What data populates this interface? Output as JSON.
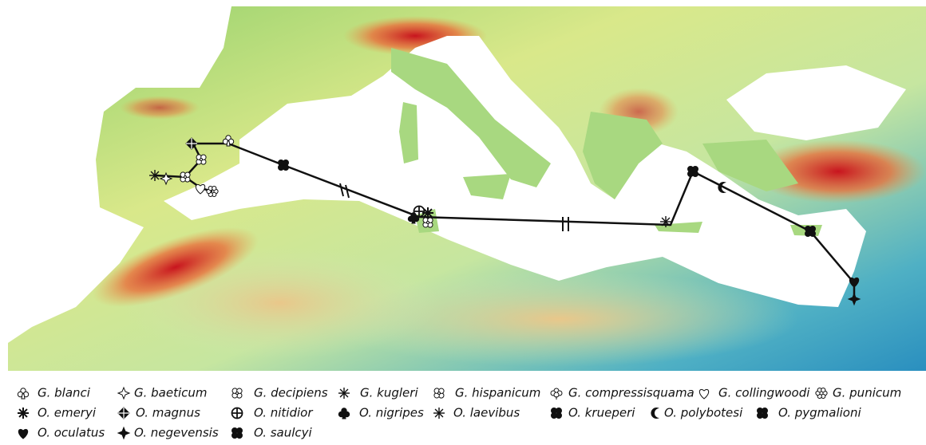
{
  "legend": [
    "G. blanci",
    "G. baeticum",
    "G. decipiens",
    "G. kugleri",
    "G. hispanicum",
    "G. compressisquama",
    "G. collingwoodi",
    "G. punicum",
    "O. emeryi",
    "O. magnus",
    "O. nitidior",
    "O. nigripes",
    "O. laevibus",
    "O. krueperi",
    "O. polybotesi",
    "O. pygmalioni",
    "O. oculatus",
    "O. negevensis",
    "O. saulcyi"
  ]
}
